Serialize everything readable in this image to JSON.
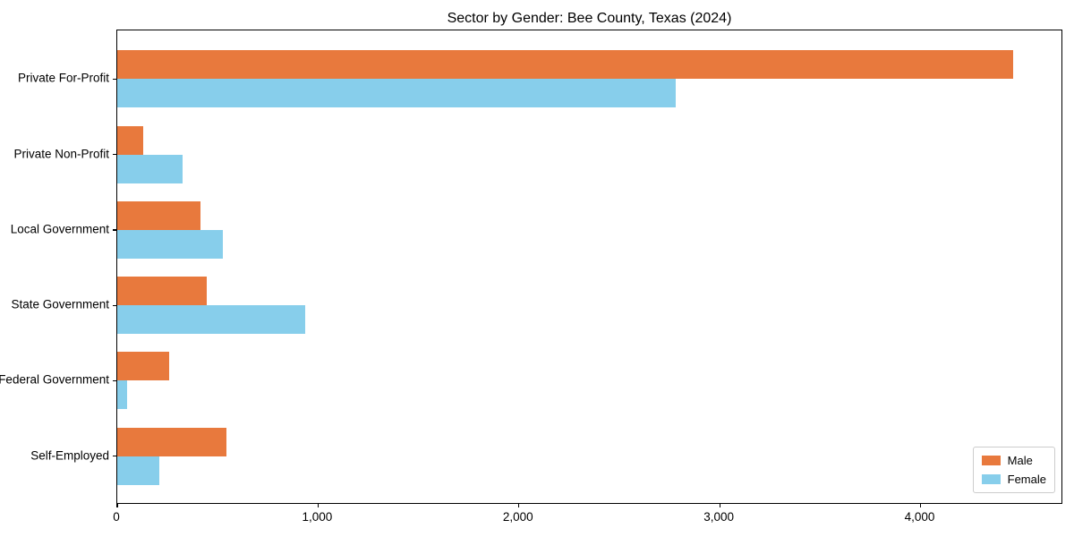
{
  "chart_data": {
    "type": "bar",
    "orientation": "horizontal",
    "title": "Sector by Gender: Bee County, Texas (2024)",
    "categories": [
      "Private For-Profit",
      "Private Non-Profit",
      "Local Government",
      "State Government",
      "Federal Government",
      "Self-Employed"
    ],
    "series": [
      {
        "name": "Male",
        "color": "#e8793d",
        "values": [
          4460,
          130,
          415,
          445,
          260,
          545
        ]
      },
      {
        "name": "Female",
        "color": "#87ceeb",
        "values": [
          2780,
          325,
          525,
          935,
          50,
          210
        ]
      }
    ],
    "xlabel": "",
    "ylabel": "",
    "xlim": [
      0,
      4700
    ],
    "xticks": [
      0,
      1000,
      2000,
      3000,
      4000
    ],
    "xtick_labels": [
      "0",
      "1,000",
      "2,000",
      "3,000",
      "4,000"
    ],
    "grid": false,
    "legend_position": "lower right"
  },
  "legend": {
    "items": [
      {
        "label": "Male"
      },
      {
        "label": "Female"
      }
    ]
  }
}
